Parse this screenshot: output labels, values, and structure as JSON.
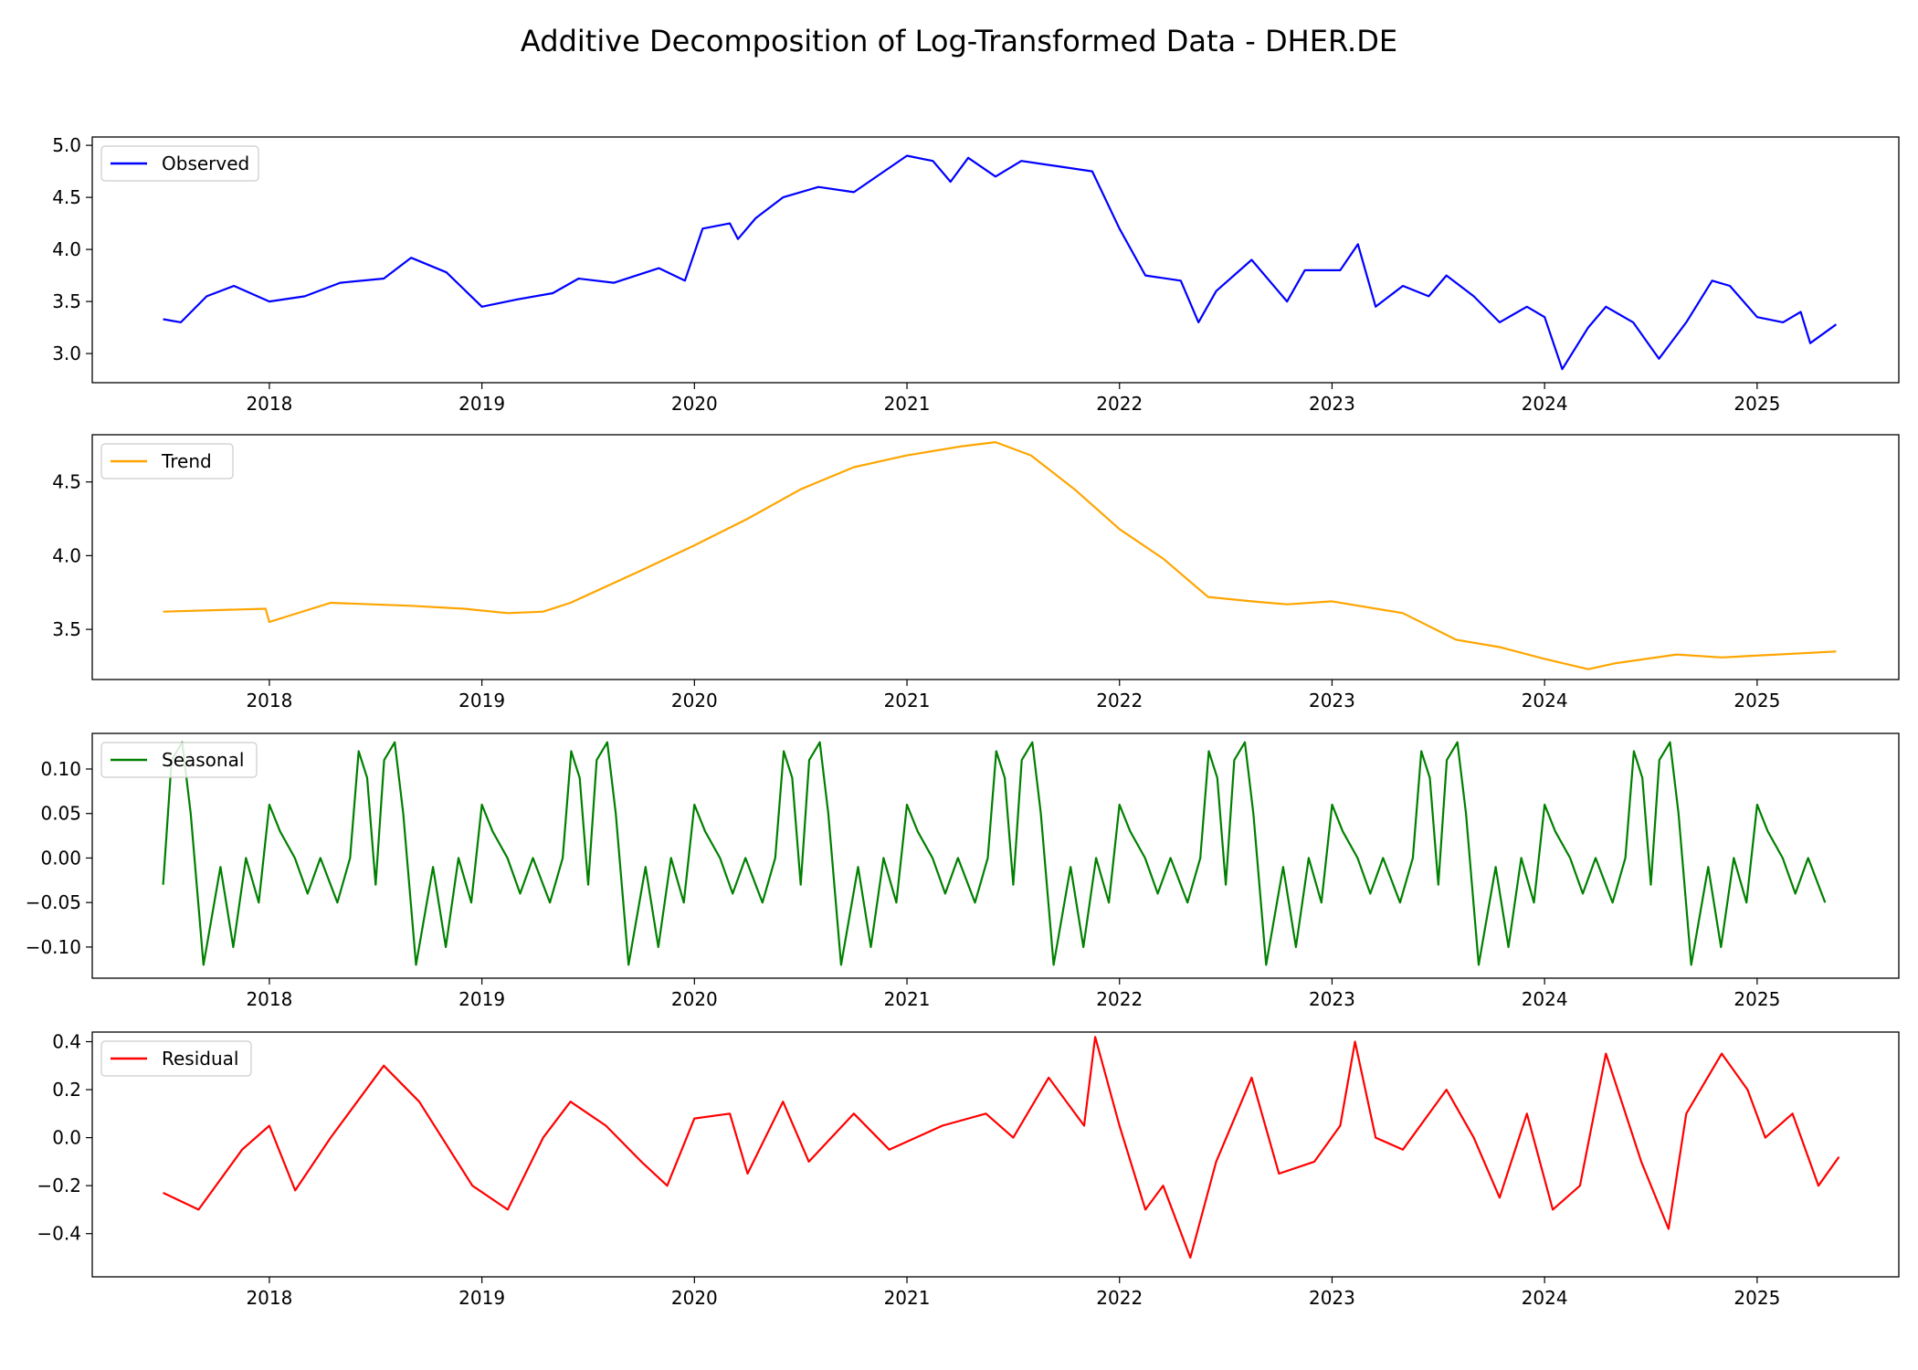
{
  "figure": {
    "title": "Additive Decomposition of Log-Transformed Data - DHER.DE"
  },
  "chart_data": [
    {
      "type": "line",
      "panel": "observed",
      "legend": "top-left",
      "grid": false,
      "xticks": [
        "2018",
        "2019",
        "2020",
        "2021",
        "2022",
        "2023",
        "2024",
        "2025"
      ],
      "xlim": [
        "2017-03",
        "2025-09"
      ],
      "ylim": [
        2.72,
        5.08
      ],
      "yticks": [
        "3.0",
        "3.5",
        "4.0",
        "4.5",
        "5.0"
      ],
      "ytick_values": [
        3.0,
        3.5,
        4.0,
        4.5,
        5.0
      ],
      "series": [
        {
          "name": "Observed",
          "color": "#0000ff",
          "x": [
            "2017-07-01",
            "2017-08-01",
            "2017-09-15",
            "2017-11-01",
            "2018-01-01",
            "2018-03-01",
            "2018-05-01",
            "2018-07-15",
            "2018-09-01",
            "2018-11-01",
            "2019-01-01",
            "2019-03-01",
            "2019-05-01",
            "2019-06-15",
            "2019-08-15",
            "2019-11-01",
            "2019-12-15",
            "2020-01-15",
            "2020-03-01",
            "2020-03-15",
            "2020-04-15",
            "2020-06-01",
            "2020-08-01",
            "2020-10-01",
            "2021-01-01",
            "2021-02-15",
            "2021-03-15",
            "2021-04-15",
            "2021-06-01",
            "2021-07-15",
            "2021-09-15",
            "2021-11-15",
            "2022-01-01",
            "2022-02-15",
            "2022-04-15",
            "2022-05-15",
            "2022-06-15",
            "2022-08-15",
            "2022-10-15",
            "2022-11-15",
            "2023-01-15",
            "2023-02-15",
            "2023-03-15",
            "2023-05-01",
            "2023-06-15",
            "2023-07-15",
            "2023-09-01",
            "2023-10-15",
            "2023-12-01",
            "2024-01-01",
            "2024-02-01",
            "2024-03-15",
            "2024-04-15",
            "2024-06-01",
            "2024-07-15",
            "2024-09-01",
            "2024-10-15",
            "2024-11-15",
            "2025-01-01",
            "2025-02-15",
            "2025-03-15",
            "2025-04-01",
            "2025-05-15"
          ],
          "values": [
            3.33,
            3.3,
            3.55,
            3.65,
            3.5,
            3.55,
            3.68,
            3.72,
            3.92,
            3.78,
            3.45,
            3.52,
            3.58,
            3.72,
            3.68,
            3.82,
            3.7,
            4.2,
            4.25,
            4.1,
            4.3,
            4.5,
            4.6,
            4.55,
            4.9,
            4.85,
            4.65,
            4.88,
            4.7,
            4.85,
            4.8,
            4.75,
            4.2,
            3.75,
            3.7,
            3.3,
            3.6,
            3.9,
            3.5,
            3.8,
            3.8,
            4.05,
            3.45,
            3.65,
            3.55,
            3.75,
            3.55,
            3.3,
            3.45,
            3.35,
            2.85,
            3.25,
            3.45,
            3.3,
            2.95,
            3.3,
            3.7,
            3.65,
            3.35,
            3.3,
            3.4,
            3.1,
            3.28
          ]
        }
      ]
    },
    {
      "type": "line",
      "panel": "trend",
      "legend": "top-left",
      "grid": false,
      "xticks": [
        "2018",
        "2019",
        "2020",
        "2021",
        "2022",
        "2023",
        "2024",
        "2025"
      ],
      "xlim": [
        "2017-03",
        "2025-09"
      ],
      "ylim": [
        3.16,
        4.82
      ],
      "yticks": [
        "3.5",
        "4.0",
        "4.5"
      ],
      "ytick_values": [
        3.5,
        4.0,
        4.5
      ],
      "series": [
        {
          "name": "Trend",
          "color": "#ffa500",
          "x": [
            "2017-07-01",
            "2017-12-25",
            "2018-01-01",
            "2018-04-15",
            "2018-09-01",
            "2018-12-01",
            "2019-02-15",
            "2019-04-15",
            "2019-06-01",
            "2019-10-01",
            "2020-01-01",
            "2020-04-01",
            "2020-07-01",
            "2020-10-01",
            "2021-01-01",
            "2021-04-01",
            "2021-06-01",
            "2021-08-01",
            "2021-10-15",
            "2022-01-01",
            "2022-03-15",
            "2022-06-01",
            "2022-08-15",
            "2022-10-15",
            "2023-01-01",
            "2023-05-01",
            "2023-08-01",
            "2023-10-15",
            "2024-01-01",
            "2024-03-15",
            "2024-05-01",
            "2024-08-15",
            "2024-11-01",
            "2025-05-15"
          ],
          "values": [
            3.62,
            3.64,
            3.55,
            3.68,
            3.66,
            3.64,
            3.61,
            3.62,
            3.68,
            3.9,
            4.07,
            4.25,
            4.45,
            4.6,
            4.68,
            4.74,
            4.77,
            4.68,
            4.45,
            4.18,
            3.98,
            3.72,
            3.69,
            3.67,
            3.69,
            3.61,
            3.43,
            3.38,
            3.3,
            3.23,
            3.27,
            3.33,
            3.31,
            3.35
          ]
        }
      ]
    },
    {
      "type": "line",
      "panel": "seasonal",
      "legend": "top-left",
      "grid": false,
      "xticks": [
        "2018",
        "2019",
        "2020",
        "2021",
        "2022",
        "2023",
        "2024",
        "2025"
      ],
      "xlim": [
        "2017-03",
        "2025-09"
      ],
      "ylim": [
        -0.135,
        0.14
      ],
      "yticks": [
        "0.10",
        "0.05",
        "0.00",
        "−0.05",
        "−0.10"
      ],
      "ytick_values": [
        0.1,
        0.05,
        0.0,
        -0.05,
        -0.1
      ],
      "series": [
        {
          "name": "Seasonal",
          "color": "#008000",
          "period": "1 year, repeats annually from 2017-07 to 2025-05",
          "x_within_year": [
            0.0,
            0.04,
            0.09,
            0.13,
            0.19,
            0.27,
            0.33,
            0.39,
            0.45,
            0.5,
            0.55,
            0.62,
            0.68,
            0.74,
            0.82,
            0.88,
            0.92,
            0.96,
            1.0
          ],
          "values": [
            -0.03,
            0.11,
            0.13,
            0.05,
            -0.12,
            -0.01,
            -0.1,
            0.0,
            -0.05,
            0.06,
            0.03,
            0.0,
            -0.04,
            0.0,
            -0.05,
            0.0,
            0.12,
            0.09,
            -0.03
          ]
        }
      ]
    },
    {
      "type": "line",
      "panel": "residual",
      "legend": "top-left",
      "grid": false,
      "xticks": [
        "2018",
        "2019",
        "2020",
        "2021",
        "2022",
        "2023",
        "2024",
        "2025"
      ],
      "xlim": [
        "2017-03",
        "2025-09"
      ],
      "ylim": [
        -0.58,
        0.44
      ],
      "yticks": [
        "0.4",
        "0.2",
        "0.0",
        "−0.2",
        "−0.4"
      ],
      "ytick_values": [
        0.4,
        0.2,
        0.0,
        -0.2,
        -0.4
      ],
      "series": [
        {
          "name": "Residual",
          "color": "#ff0000",
          "x": [
            "2017-07-01",
            "2017-09-01",
            "2017-11-15",
            "2018-01-01",
            "2018-02-15",
            "2018-04-15",
            "2018-07-15",
            "2018-09-15",
            "2018-12-15",
            "2019-02-15",
            "2019-04-15",
            "2019-06-01",
            "2019-08-01",
            "2019-10-01",
            "2019-11-15",
            "2020-01-01",
            "2020-03-01",
            "2020-04-01",
            "2020-06-01",
            "2020-07-15",
            "2020-10-01",
            "2020-12-01",
            "2021-03-01",
            "2021-05-15",
            "2021-07-01",
            "2021-09-01",
            "2021-11-01",
            "2021-11-20",
            "2022-01-01",
            "2022-02-15",
            "2022-03-15",
            "2022-05-01",
            "2022-06-15",
            "2022-08-15",
            "2022-10-01",
            "2022-12-01",
            "2023-01-15",
            "2023-02-10",
            "2023-03-15",
            "2023-05-01",
            "2023-07-15",
            "2023-09-01",
            "2023-10-15",
            "2023-12-01",
            "2024-01-15",
            "2024-03-01",
            "2024-04-15",
            "2024-06-15",
            "2024-08-01",
            "2024-09-01",
            "2024-11-01",
            "2024-12-15",
            "2025-01-15",
            "2025-03-01",
            "2025-04-15",
            "2025-05-20"
          ],
          "values": [
            -0.23,
            -0.3,
            -0.05,
            0.05,
            -0.22,
            0.0,
            0.3,
            0.15,
            -0.2,
            -0.3,
            0.0,
            0.15,
            0.05,
            -0.1,
            -0.2,
            0.08,
            0.1,
            -0.15,
            0.15,
            -0.1,
            0.1,
            -0.05,
            0.05,
            0.1,
            0.0,
            0.25,
            0.05,
            0.42,
            0.05,
            -0.3,
            -0.2,
            -0.5,
            -0.1,
            0.25,
            -0.15,
            -0.1,
            0.05,
            0.4,
            0.0,
            -0.05,
            0.2,
            0.0,
            -0.25,
            0.1,
            -0.3,
            -0.2,
            0.35,
            -0.1,
            -0.38,
            0.1,
            0.35,
            0.2,
            0.0,
            0.1,
            -0.2,
            -0.08
          ]
        }
      ]
    }
  ]
}
